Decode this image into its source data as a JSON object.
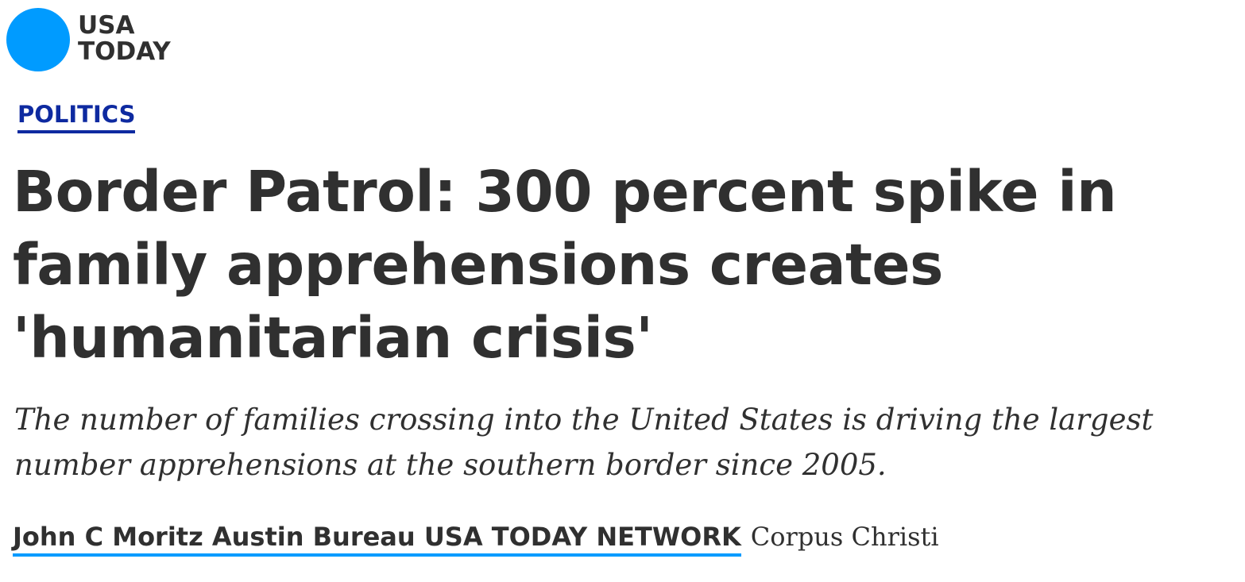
{
  "logo": {
    "line1": "USA",
    "line2": "TODAY"
  },
  "section": "POLITICS",
  "headline": "Border Patrol: 300 percent spike in family apprehensions creates 'humanitarian crisis'",
  "summary": "The number of families crossing into the United States is driving the largest number apprehensions at the southern border since 2005.",
  "byline": {
    "author": "John C Moritz Austin Bureau USA TODAY NETWORK",
    "location": "Corpus Christi"
  }
}
